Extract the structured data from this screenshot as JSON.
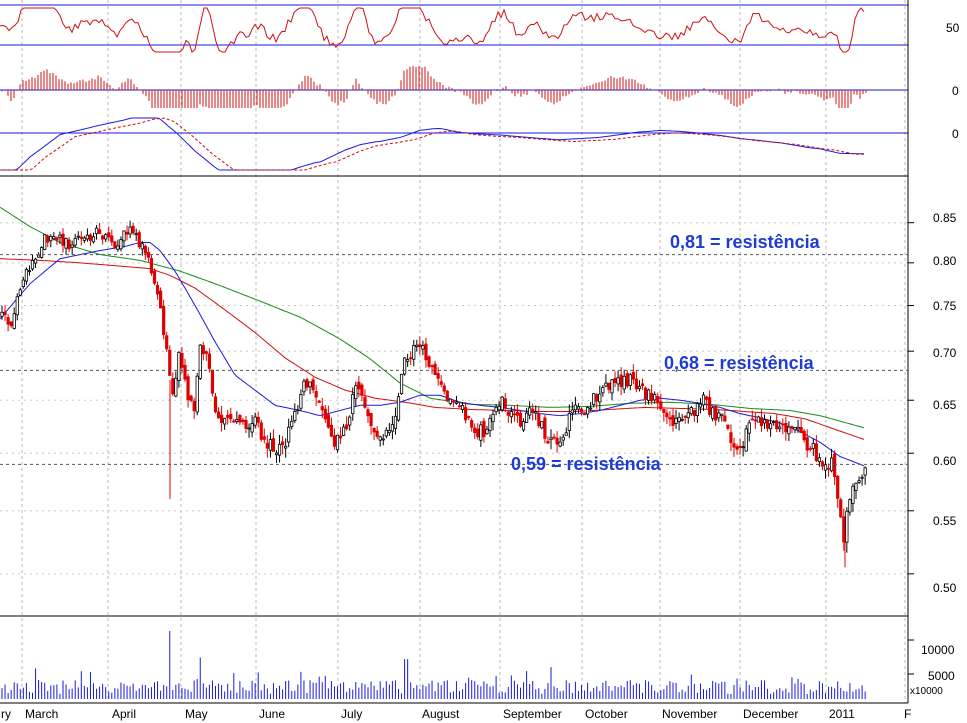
{
  "chart_data": {
    "type": "candlestick",
    "months": [
      "ry",
      "March",
      "April",
      "May",
      "June",
      "July",
      "August",
      "September",
      "October",
      "November",
      "December",
      "2011",
      "F"
    ],
    "price_ticks": [
      {
        "label": "0.85",
        "value": 0.85
      },
      {
        "label": "0.80",
        "value": 0.8
      },
      {
        "label": "0.75",
        "value": 0.75
      },
      {
        "label": "0.70",
        "value": 0.7
      },
      {
        "label": "0.65",
        "value": 0.65
      },
      {
        "label": "0.60",
        "value": 0.6
      },
      {
        "label": "0.55",
        "value": 0.55
      },
      {
        "label": "0.50",
        "value": 0.5
      }
    ],
    "price_range": [
      0.472,
      0.885
    ],
    "indicator_ticks": {
      "rsi": "50",
      "histogram": "0",
      "macd": "0"
    },
    "volume_ticks": [
      {
        "label": "10000",
        "value": 10000
      },
      {
        "label": "5000",
        "value": 5000
      }
    ],
    "volume_unit": "x10000",
    "volume_range": [
      0,
      25000
    ],
    "annotations": [
      {
        "text": "0,81 = resistência",
        "level": 0.81
      },
      {
        "text": "0,68 = resistência",
        "level": 0.68
      },
      {
        "text": "0,59 = resistência",
        "level": 0.59
      }
    ],
    "close_anchors": [
      [
        0,
        0.74
      ],
      [
        12,
        0.73
      ],
      [
        22,
        0.78
      ],
      [
        32,
        0.8
      ],
      [
        45,
        0.83
      ],
      [
        58,
        0.83
      ],
      [
        70,
        0.82
      ],
      [
        78,
        0.83
      ],
      [
        88,
        0.83
      ],
      [
        98,
        0.84
      ],
      [
        108,
        0.83
      ],
      [
        116,
        0.82
      ],
      [
        124,
        0.84
      ],
      [
        132,
        0.84
      ],
      [
        142,
        0.82
      ],
      [
        150,
        0.8
      ],
      [
        158,
        0.76
      ],
      [
        166,
        0.71
      ],
      [
        172,
        0.65
      ],
      [
        180,
        0.7
      ],
      [
        186,
        0.66
      ],
      [
        194,
        0.64
      ],
      [
        200,
        0.71
      ],
      [
        208,
        0.69
      ],
      [
        216,
        0.64
      ],
      [
        226,
        0.63
      ],
      [
        236,
        0.63
      ],
      [
        246,
        0.62
      ],
      [
        256,
        0.63
      ],
      [
        266,
        0.61
      ],
      [
        276,
        0.6
      ],
      [
        286,
        0.61
      ],
      [
        296,
        0.64
      ],
      [
        306,
        0.67
      ],
      [
        316,
        0.65
      ],
      [
        326,
        0.63
      ],
      [
        336,
        0.61
      ],
      [
        346,
        0.62
      ],
      [
        356,
        0.67
      ],
      [
        366,
        0.64
      ],
      [
        376,
        0.62
      ],
      [
        386,
        0.62
      ],
      [
        396,
        0.64
      ],
      [
        404,
        0.69
      ],
      [
        414,
        0.7
      ],
      [
        424,
        0.7
      ],
      [
        434,
        0.68
      ],
      [
        444,
        0.66
      ],
      [
        454,
        0.65
      ],
      [
        464,
        0.64
      ],
      [
        474,
        0.62
      ],
      [
        484,
        0.62
      ],
      [
        494,
        0.64
      ],
      [
        504,
        0.65
      ],
      [
        514,
        0.63
      ],
      [
        524,
        0.63
      ],
      [
        534,
        0.64
      ],
      [
        544,
        0.62
      ],
      [
        554,
        0.61
      ],
      [
        564,
        0.62
      ],
      [
        574,
        0.64
      ],
      [
        584,
        0.64
      ],
      [
        594,
        0.65
      ],
      [
        604,
        0.66
      ],
      [
        614,
        0.67
      ],
      [
        624,
        0.67
      ],
      [
        634,
        0.67
      ],
      [
        644,
        0.66
      ],
      [
        654,
        0.65
      ],
      [
        664,
        0.64
      ],
      [
        674,
        0.63
      ],
      [
        684,
        0.63
      ],
      [
        694,
        0.64
      ],
      [
        704,
        0.65
      ],
      [
        712,
        0.64
      ],
      [
        722,
        0.63
      ],
      [
        732,
        0.61
      ],
      [
        738,
        0.6
      ],
      [
        746,
        0.62
      ],
      [
        756,
        0.63
      ],
      [
        766,
        0.63
      ],
      [
        776,
        0.63
      ],
      [
        786,
        0.62
      ],
      [
        796,
        0.62
      ],
      [
        806,
        0.61
      ],
      [
        816,
        0.6
      ],
      [
        824,
        0.59
      ],
      [
        832,
        0.59
      ],
      [
        838,
        0.56
      ],
      [
        843,
        0.525
      ],
      [
        848,
        0.55
      ],
      [
        854,
        0.58
      ],
      [
        860,
        0.575
      ],
      [
        866,
        0.585
      ]
    ],
    "sma_short": [
      [
        0,
        0.735
      ],
      [
        30,
        0.775
      ],
      [
        60,
        0.805
      ],
      [
        100,
        0.815
      ],
      [
        125,
        0.82
      ],
      [
        140,
        0.825
      ],
      [
        150,
        0.825
      ],
      [
        160,
        0.815
      ],
      [
        175,
        0.79
      ],
      [
        195,
        0.75
      ],
      [
        215,
        0.71
      ],
      [
        235,
        0.675
      ],
      [
        255,
        0.66
      ],
      [
        275,
        0.645
      ],
      [
        300,
        0.64
      ],
      [
        320,
        0.635
      ],
      [
        340,
        0.64
      ],
      [
        360,
        0.645
      ],
      [
        380,
        0.645
      ],
      [
        400,
        0.648
      ],
      [
        420,
        0.655
      ],
      [
        440,
        0.655
      ],
      [
        460,
        0.648
      ],
      [
        480,
        0.645
      ],
      [
        500,
        0.643
      ],
      [
        520,
        0.64
      ],
      [
        540,
        0.637
      ],
      [
        560,
        0.635
      ],
      [
        580,
        0.637
      ],
      [
        600,
        0.64
      ],
      [
        620,
        0.645
      ],
      [
        640,
        0.65
      ],
      [
        660,
        0.652
      ],
      [
        680,
        0.65
      ],
      [
        700,
        0.647
      ],
      [
        720,
        0.643
      ],
      [
        740,
        0.637
      ],
      [
        760,
        0.633
      ],
      [
        780,
        0.628
      ],
      [
        800,
        0.62
      ],
      [
        820,
        0.61
      ],
      [
        840,
        0.597
      ],
      [
        866,
        0.588
      ]
    ],
    "sma_mid": [
      [
        0,
        0.805
      ],
      [
        40,
        0.803
      ],
      [
        80,
        0.8
      ],
      [
        120,
        0.796
      ],
      [
        150,
        0.793
      ],
      [
        170,
        0.785
      ],
      [
        195,
        0.77
      ],
      [
        225,
        0.745
      ],
      [
        255,
        0.72
      ],
      [
        285,
        0.693
      ],
      [
        315,
        0.673
      ],
      [
        345,
        0.66
      ],
      [
        375,
        0.652
      ],
      [
        405,
        0.648
      ],
      [
        435,
        0.643
      ],
      [
        470,
        0.641
      ],
      [
        505,
        0.64
      ],
      [
        540,
        0.639
      ],
      [
        575,
        0.639
      ],
      [
        610,
        0.641
      ],
      [
        645,
        0.643
      ],
      [
        680,
        0.642
      ],
      [
        715,
        0.641
      ],
      [
        745,
        0.639
      ],
      [
        775,
        0.637
      ],
      [
        805,
        0.632
      ],
      [
        835,
        0.622
      ],
      [
        866,
        0.612
      ]
    ],
    "sma_long": [
      [
        0,
        0.87
      ],
      [
        30,
        0.845
      ],
      [
        60,
        0.825
      ],
      [
        100,
        0.81
      ],
      [
        140,
        0.803
      ],
      [
        180,
        0.79
      ],
      [
        220,
        0.773
      ],
      [
        260,
        0.755
      ],
      [
        300,
        0.737
      ],
      [
        340,
        0.713
      ],
      [
        370,
        0.692
      ],
      [
        400,
        0.667
      ],
      [
        430,
        0.652
      ],
      [
        470,
        0.646
      ],
      [
        510,
        0.645
      ],
      [
        550,
        0.643
      ],
      [
        590,
        0.644
      ],
      [
        630,
        0.647
      ],
      [
        670,
        0.648
      ],
      [
        710,
        0.646
      ],
      [
        750,
        0.642
      ],
      [
        790,
        0.64
      ],
      [
        820,
        0.635
      ],
      [
        866,
        0.623
      ]
    ]
  }
}
